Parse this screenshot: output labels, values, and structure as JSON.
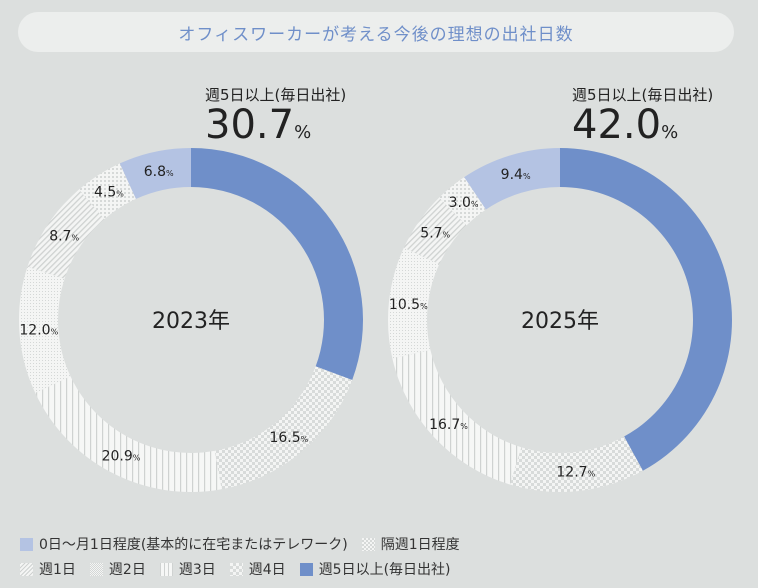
{
  "title": "オフィスワーカーが考える今後の理想の出社日数",
  "legend": [
    {
      "label": "0日〜月1日程度(基本的に在宅またはテレワーク)",
      "pattern": "solid-light"
    },
    {
      "label": "隔週1日程度",
      "pattern": "dots"
    },
    {
      "label": "週1日",
      "pattern": "diagonal"
    },
    {
      "label": "週2日",
      "pattern": "fine-dots"
    },
    {
      "label": "週3日",
      "pattern": "vertical"
    },
    {
      "label": "週4日",
      "pattern": "checker"
    },
    {
      "label": "週5日以上(毎日出社)",
      "pattern": "solid-dark"
    }
  ],
  "colors": {
    "blue": "#6f8fc9",
    "light_blue": "#b4c3e3",
    "background": "#dcdfde",
    "title_text": "#6f8fc9"
  },
  "chart_data": [
    {
      "type": "pie",
      "donut": true,
      "center_label": "2023年",
      "highlight": {
        "label": "週5日以上(毎日出社)",
        "value": "30.7",
        "unit": "%"
      },
      "categories": [
        "週5日以上(毎日出社)",
        "週4日",
        "週3日",
        "週2日",
        "週1日",
        "隔週1日程度",
        "0日〜月1日程度(基本的に在宅またはテレワーク)"
      ],
      "values": [
        30.7,
        16.5,
        20.9,
        12.0,
        8.7,
        4.5,
        6.8
      ],
      "data_labels": [
        "",
        "16.5",
        "20.9",
        "12.0",
        "8.7",
        "4.5",
        "6.8"
      ],
      "unit": "%"
    },
    {
      "type": "pie",
      "donut": true,
      "center_label": "2025年",
      "highlight": {
        "label": "週5日以上(毎日出社)",
        "value": "42.0",
        "unit": "%"
      },
      "categories": [
        "週5日以上(毎日出社)",
        "週4日",
        "週3日",
        "週2日",
        "週1日",
        "隔週1日程度",
        "0日〜月1日程度(基本的に在宅またはテレワーク)"
      ],
      "values": [
        42.0,
        12.7,
        16.7,
        10.5,
        5.7,
        3.0,
        9.4
      ],
      "data_labels": [
        "",
        "12.7",
        "16.7",
        "10.5",
        "5.7",
        "3.0",
        "9.4"
      ],
      "unit": "%"
    }
  ]
}
